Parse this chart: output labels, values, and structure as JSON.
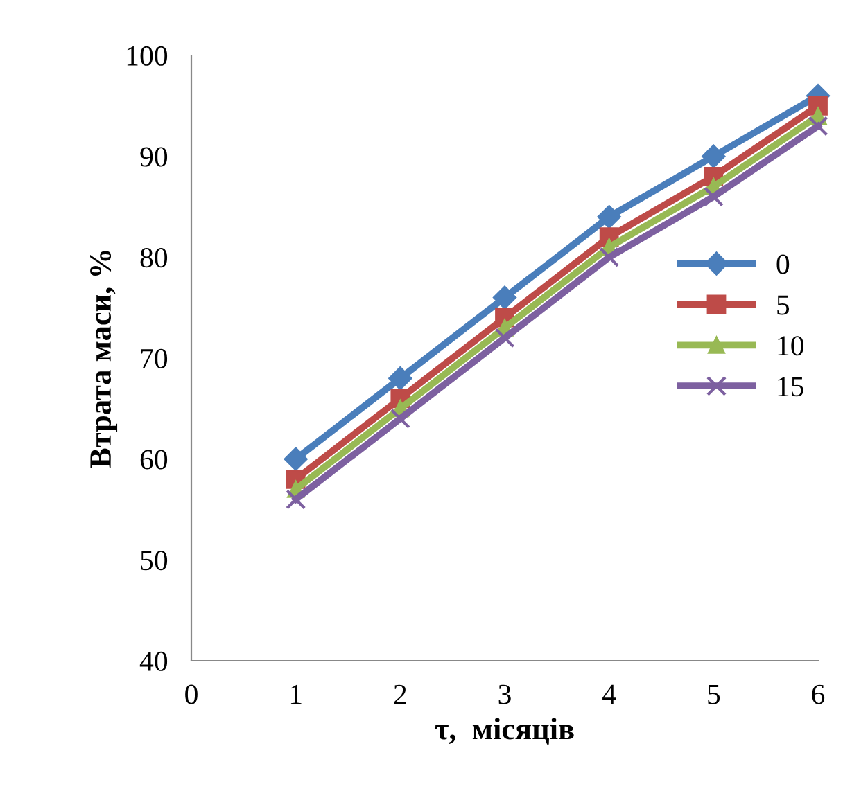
{
  "chart_data": {
    "type": "line",
    "xlabel": "τ,  місяців",
    "ylabel": "Втрата маси, %",
    "x": [
      1,
      2,
      3,
      4,
      5,
      6
    ],
    "series": [
      {
        "name": "0",
        "color": "#4a7ebb",
        "values": [
          60,
          68,
          76,
          84,
          90,
          96
        ],
        "marker": "diamond"
      },
      {
        "name": "5",
        "color": "#be4b48",
        "values": [
          58,
          66,
          74,
          82,
          88,
          95
        ],
        "marker": "square"
      },
      {
        "name": "10",
        "color": "#98b954",
        "values": [
          57,
          65,
          73,
          81,
          87,
          94
        ],
        "marker": "triangle"
      },
      {
        "name": "15",
        "color": "#7d60a0",
        "values": [
          56,
          64,
          72,
          80,
          86,
          93
        ],
        "marker": "cross"
      }
    ],
    "xlim": [
      0,
      6
    ],
    "xticks": [
      0,
      1,
      2,
      3,
      4,
      5,
      6
    ],
    "ylim": [
      40,
      100
    ],
    "yticks": [
      40,
      50,
      60,
      70,
      80,
      90,
      100
    ],
    "grid": false,
    "legend": "right",
    "line_style": "solid"
  }
}
